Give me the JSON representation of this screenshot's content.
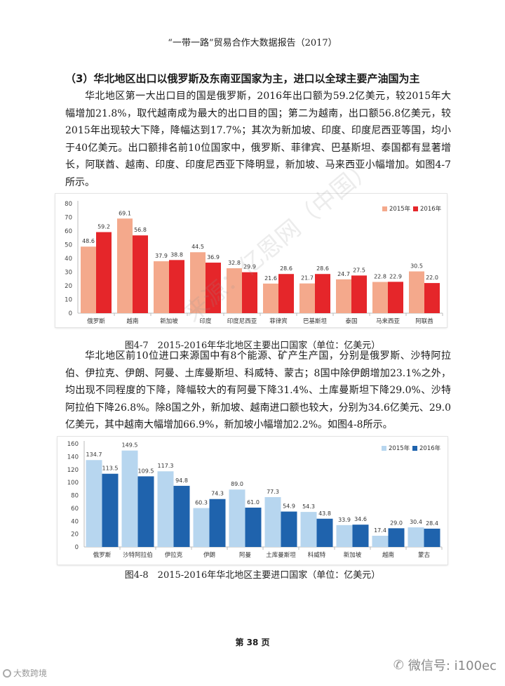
{
  "header": {
    "title": "“一带一路”贸易合作大数据报告（2017）"
  },
  "section": {
    "title": "（3）华北地区出口以俄罗斯及东南亚国家为主，进口以全球主要产油国为主"
  },
  "paragraphs": {
    "p1": "华北地区第一大出口目的国是俄罗斯，2016年出口额为59.2亿美元，较2015年大幅增加21.8%，取代越南成为最大的出口目的国；第二为越南，出口额56.8亿美元，较2015年出现较大下降，降幅达到17.7%；其次为新加坡、印度、印度尼西亚等国，均小于40亿美元。出口额排名前10位国家中，俄罗斯、菲律宾、巴基斯坦、泰国都有显著增长，阿联酋、越南、印度、印度尼西亚下降明显，新加坡、马来西亚小幅增加。如图4-7所示。",
    "p2": "华北地区前10位进口来源国中有8个能源、矿产生产国，分别是俄罗斯、沙特阿拉伯、伊拉克、伊朗、阿曼、土库曼斯坦、科威特、蒙古；8国中除伊朗增加23.1%之外，均出现不同程度的下降，降幅较大的有阿曼下降31.4%、土库曼斯坦下降29.0%、沙特阿拉伯下降26.8%。除8国之外，新加坡、越南进口额也较大，分别为34.6亿美元、29.0亿美元，其中越南大幅增加66.9%，新加坡小幅增加2.2%。如图4-8所示。"
  },
  "captions": {
    "fig47": "图4-7　2015-2016年华北地区主要出口国家（单位：亿美元）",
    "fig48": "图4-8　2015-2016年华北地区主要进口国家（单位：亿美元）"
  },
  "page": {
    "number": "第 38 页"
  },
  "watermark": {
    "text": "来源：亿恩网（中国）"
  },
  "badge": {
    "text": "微信号: i100ec",
    "icon": "wechat-icon"
  },
  "corner": {
    "text": "大数跨境",
    "icon": "logo-icon"
  },
  "chart_data": [
    {
      "type": "bar",
      "title": "",
      "xlabel": "",
      "ylabel": "",
      "ylim": [
        0,
        80
      ],
      "yticks": [
        0,
        10,
        20,
        30,
        40,
        50,
        60,
        70,
        80
      ],
      "categories": [
        "俄罗斯",
        "越南",
        "新加坡",
        "印度",
        "印度尼西亚",
        "菲律宾",
        "巴基斯坦",
        "泰国",
        "马来西亚",
        "阿联酋"
      ],
      "series": [
        {
          "name": "2015年",
          "color": "#f4a98c",
          "values": [
            48.6,
            69.1,
            37.9,
            44.5,
            32.8,
            21.6,
            21.7,
            24.7,
            22.8,
            30.5
          ]
        },
        {
          "name": "2016年",
          "color": "#e5262a",
          "values": [
            59.2,
            56.8,
            38.8,
            36.9,
            29.9,
            28.6,
            28.6,
            27.5,
            22.9,
            22.0
          ]
        }
      ],
      "legend": "top-right",
      "grid": false
    },
    {
      "type": "bar",
      "title": "",
      "xlabel": "",
      "ylabel": "",
      "ylim": [
        0,
        160
      ],
      "yticks": [
        0,
        20,
        40,
        60,
        80,
        100,
        120,
        140,
        160
      ],
      "categories": [
        "俄罗斯",
        "沙特阿拉伯",
        "伊拉克",
        "伊朗",
        "阿曼",
        "土库曼斯坦",
        "科威特",
        "新加坡",
        "越南",
        "蒙古"
      ],
      "series": [
        {
          "name": "2015年",
          "color": "#b7d6ef",
          "values": [
            134.7,
            149.5,
            117.3,
            60.3,
            89.0,
            77.3,
            54.3,
            33.9,
            17.4,
            30.4
          ]
        },
        {
          "name": "2016年",
          "color": "#1f63ad",
          "values": [
            113.5,
            109.5,
            94.8,
            74.3,
            61.0,
            54.9,
            43.8,
            34.6,
            29.0,
            28.4
          ]
        }
      ],
      "legend": "top-right",
      "grid": false
    }
  ]
}
